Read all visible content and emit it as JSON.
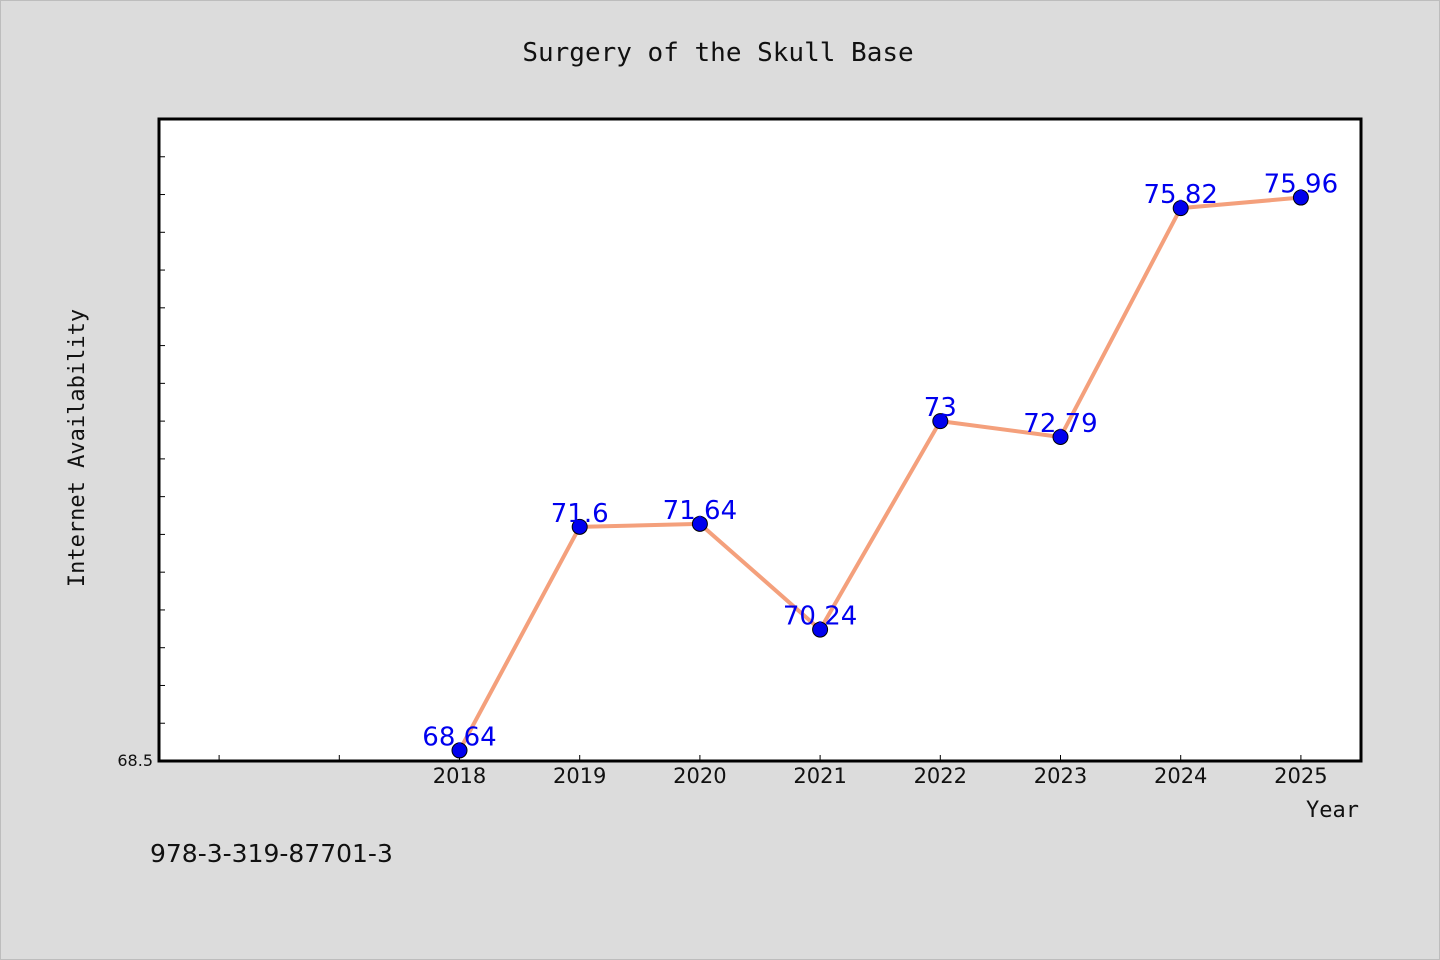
{
  "chart_data": {
    "type": "line",
    "title": "Surgery of the Skull Base",
    "xlabel": "Year",
    "ylabel": "Internet Availability",
    "categories": [
      "2018",
      "2019",
      "2020",
      "2021",
      "2022",
      "2023",
      "2024",
      "2025"
    ],
    "values": [
      68.64,
      71.6,
      71.64,
      70.24,
      73,
      72.79,
      75.82,
      75.96
    ],
    "data_labels": [
      "68.64",
      "71.6",
      "71.64",
      "70.24",
      "73",
      "72.79",
      "75.82",
      "75.96"
    ],
    "ylim": [
      68.5,
      77.0
    ],
    "y_tick_labels": [
      "68.5"
    ],
    "x_range": [
      2015.5,
      2025.5
    ],
    "grid": false,
    "line_color": "#f4a07c",
    "marker_color": "#0000ee",
    "label_color": "#0000ee"
  },
  "footer": {
    "isbn": "978-3-319-87701-3"
  }
}
